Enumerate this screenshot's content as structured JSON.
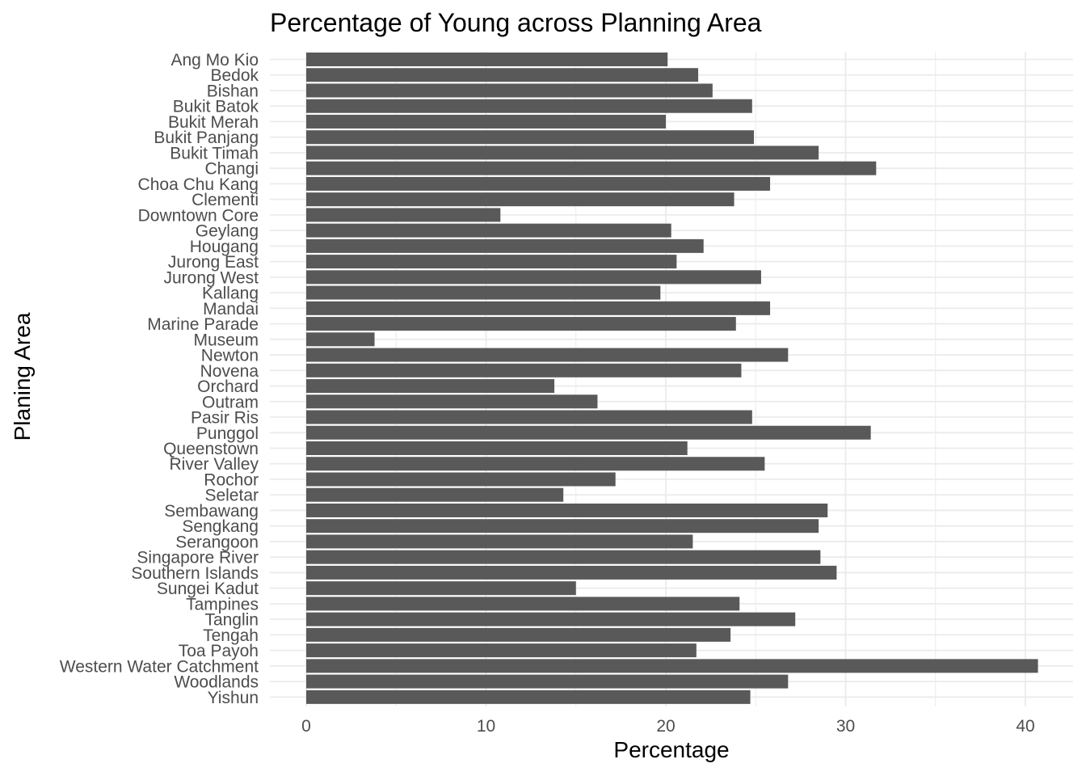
{
  "chart_data": {
    "type": "bar",
    "orientation": "horizontal",
    "title": "Percentage of Young across Planning Area",
    "xlabel": "Percentage",
    "ylabel": "Planing Area",
    "xlim": [
      -2,
      42
    ],
    "x_ticks": [
      0,
      10,
      20,
      30,
      40
    ],
    "grid": true,
    "bar_color": "#595959",
    "grid_color": "#ebebeb",
    "categories": [
      "Ang Mo Kio",
      "Bedok",
      "Bishan",
      "Bukit Batok",
      "Bukit Merah",
      "Bukit Panjang",
      "Bukit Timah",
      "Changi",
      "Choa Chu Kang",
      "Clementi",
      "Downtown Core",
      "Geylang",
      "Hougang",
      "Jurong East",
      "Jurong West",
      "Kallang",
      "Mandai",
      "Marine Parade",
      "Museum",
      "Newton",
      "Novena",
      "Orchard",
      "Outram",
      "Pasir Ris",
      "Punggol",
      "Queenstown",
      "River Valley",
      "Rochor",
      "Seletar",
      "Sembawang",
      "Sengkang",
      "Serangoon",
      "Singapore River",
      "Southern Islands",
      "Sungei Kadut",
      "Tampines",
      "Tanglin",
      "Tengah",
      "Toa Payoh",
      "Western Water Catchment",
      "Woodlands",
      "Yishun"
    ],
    "values": [
      20.1,
      21.8,
      22.6,
      24.8,
      20.0,
      24.9,
      28.5,
      31.7,
      25.8,
      23.8,
      10.8,
      20.3,
      22.1,
      20.6,
      25.3,
      19.7,
      25.8,
      23.9,
      3.8,
      26.8,
      24.2,
      13.8,
      16.2,
      24.8,
      31.4,
      21.2,
      25.5,
      17.2,
      14.3,
      29.0,
      28.5,
      21.5,
      28.6,
      29.5,
      15.0,
      24.1,
      27.2,
      23.6,
      21.7,
      40.7,
      26.8,
      24.7
    ]
  }
}
